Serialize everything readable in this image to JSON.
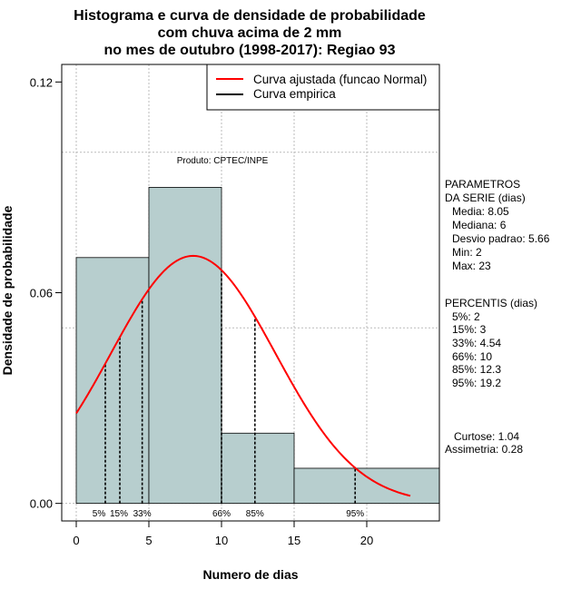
{
  "chart_data": {
    "type": "bar",
    "title_lines": [
      "Histograma e curva de densidade de probabilidade",
      "com chuva acima de 2 mm",
      "no mes de outubro (1998-2017): Regiao 93"
    ],
    "xlabel": "Numero de dias",
    "ylabel": "Densidade de probabilidade",
    "xlim": [
      -1,
      25
    ],
    "ylim": [
      -0.005,
      0.125
    ],
    "x_ticks": [
      0,
      5,
      10,
      15,
      20
    ],
    "y_ticks": [
      0.0,
      0.06,
      0.12
    ],
    "y_tick_labels": [
      "0.00",
      "0.06",
      "0.12"
    ],
    "grid": true,
    "bins": [
      {
        "start": 0,
        "end": 5,
        "density": 0.07
      },
      {
        "start": 5,
        "end": 10,
        "density": 0.09
      },
      {
        "start": 10,
        "end": 15,
        "density": 0.02
      },
      {
        "start": 15,
        "end": 25,
        "density": 0.01
      }
    ],
    "bar_color": "#b7cece",
    "curve": {
      "name": "Curva ajustada (funcao Normal)",
      "color": "#ff0000",
      "mean": 8.05,
      "sd": 5.66,
      "x_range": [
        0,
        23
      ]
    },
    "legend": [
      {
        "label": "Curva ajustada (funcao Normal)",
        "color": "#ff0000"
      },
      {
        "label": "Curva empirica",
        "color": "#000000"
      }
    ],
    "legend_position": "top-right",
    "percentile_markers": [
      {
        "label": "5%",
        "x": 2
      },
      {
        "label": "15%",
        "x": 3
      },
      {
        "label": "33%",
        "x": 4.54
      },
      {
        "label": "66%",
        "x": 10
      },
      {
        "label": "85%",
        "x": 12.3
      },
      {
        "label": "95%",
        "x": 19.2
      }
    ],
    "annotation": "Produto: CPTEC/INPE",
    "parametros": {
      "header": [
        "PARAMETROS",
        "DA SERIE (dias)"
      ],
      "lines": [
        "Media: 8.05",
        "Mediana: 6",
        "Desvio padrao: 5.66",
        "Min: 2",
        "Max: 23"
      ]
    },
    "percentis": {
      "header": "PERCENTIS (dias)",
      "lines": [
        "5%: 2",
        "15%: 3",
        "33%: 4.54",
        "66%: 10",
        "85%: 12.3",
        "95%: 19.2"
      ]
    },
    "stats": [
      "Curtose: 1.04",
      "Assimetria: 0.28"
    ]
  }
}
